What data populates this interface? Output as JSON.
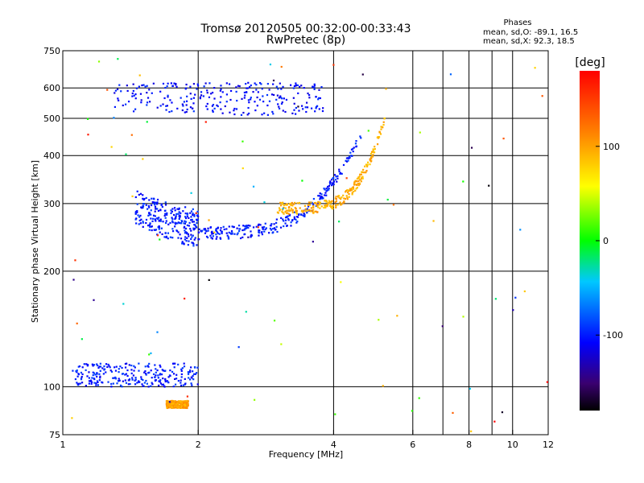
{
  "chart_data": {
    "type": "scatter",
    "title": "Tromsø 20120505 00:32:00-00:33:43",
    "subtitle": "RwPretec (8p)",
    "phases_box": {
      "heading": "Phases",
      "line1": "mean, sd,O: -89.1, 16.5",
      "line2": "mean, sd,X:  92.3, 18.5"
    },
    "xlabel": "Frequency [MHz]",
    "ylabel": "Stationary phase Virtual Height [km]",
    "x_scale": "log",
    "y_scale": "log",
    "xlim": [
      1,
      12
    ],
    "ylim": [
      75,
      750
    ],
    "x_ticks": [
      1,
      2,
      4,
      6,
      8,
      10,
      12
    ],
    "y_ticks": [
      75,
      100,
      200,
      300,
      400,
      500,
      600,
      750
    ],
    "grid": true,
    "colorbar": {
      "label": "[deg]",
      "range": [
        -180,
        180
      ],
      "ticks": [
        100,
        0,
        -100
      ],
      "colormap": "rainbow"
    },
    "traces": [
      {
        "freq_range": [
          1.45,
          2.0
        ],
        "height": 250,
        "curve": "o_mode_lower",
        "phase": -100
      },
      {
        "freq_range": [
          2.0,
          4.6
        ],
        "height_range": [
          250,
          450
        ],
        "curve": "o_mode_rising",
        "phase": -100
      },
      {
        "freq_range": [
          3.0,
          5.2
        ],
        "height_range": [
          290,
          500
        ],
        "curve": "x_mode_rising",
        "phase": 95
      },
      {
        "freq_range": [
          1.3,
          3.8
        ],
        "height_range": [
          510,
          620
        ],
        "curve": "o_mode_second_hop",
        "phase": -105
      },
      {
        "freq_range": [
          1.05,
          2.0
        ],
        "height_range": [
          100,
          115
        ],
        "curve": "e_layer",
        "phase": -100
      },
      {
        "freq_range": [
          1.7,
          1.9
        ],
        "height_range": [
          88,
          92
        ],
        "curve": "x_e_layer",
        "phase": 100
      }
    ]
  }
}
